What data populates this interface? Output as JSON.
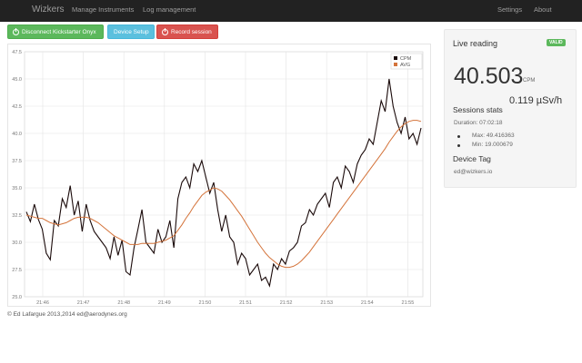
{
  "navbar": {
    "brand": "Wizkers",
    "links": [
      "Manage Instruments",
      "Log management"
    ],
    "right_links": [
      "Settings",
      "About"
    ]
  },
  "toolbar": {
    "disconnect_label": "Disconnect Kickstarter Onyx",
    "device_setup_label": "Device Setup",
    "record_label": "Record session"
  },
  "chart_data": {
    "type": "line",
    "x_ticks": [
      "21:46",
      "21:47",
      "21:48",
      "21:49",
      "21:50",
      "21:51",
      "21:52",
      "21:53",
      "21:54",
      "21:55"
    ],
    "y_ticks": [
      "25.0",
      "27.5",
      "30.0",
      "32.5",
      "35.0",
      "37.5",
      "40.0",
      "42.5",
      "45.0",
      "47.5"
    ],
    "ylim": [
      25,
      47.5
    ],
    "grid": true,
    "legend_position": "top-right",
    "series": [
      {
        "name": "CPM",
        "color": "#1a0a0a",
        "values": [
          32.8,
          31.9,
          33.5,
          32.1,
          31.2,
          29.0,
          28.4,
          32.0,
          31.5,
          34.0,
          33.2,
          35.2,
          32.5,
          33.8,
          31.0,
          33.5,
          32.0,
          31.0,
          30.5,
          30.0,
          29.5,
          28.5,
          30.5,
          28.8,
          30.2,
          27.3,
          27.0,
          29.5,
          31.2,
          33.0,
          30.0,
          29.5,
          29.0,
          31.2,
          30.0,
          30.5,
          32.0,
          29.5,
          34.0,
          35.5,
          36.0,
          35.0,
          37.2,
          36.5,
          37.5,
          36.0,
          34.5,
          35.5,
          33.0,
          31.0,
          32.5,
          30.5,
          30.0,
          28.0,
          29.0,
          28.5,
          27.0,
          27.5,
          28.0,
          26.5,
          26.8,
          26.0,
          28.0,
          27.5,
          28.5,
          28.0,
          29.2,
          29.5,
          30.0,
          31.5,
          31.8,
          33.0,
          32.5,
          33.5,
          34.0,
          34.5,
          33.2,
          35.5,
          36.0,
          35.0,
          37.0,
          36.5,
          35.5,
          37.2,
          38.0,
          38.5,
          39.5,
          39.0,
          41.0,
          43.0,
          42.0,
          45.0,
          42.5,
          41.0,
          40.0,
          41.5,
          39.5,
          40.0,
          39.0,
          40.5
        ]
      },
      {
        "name": "AVG",
        "color": "#d4733a",
        "values": [
          32.5,
          32.4,
          32.3,
          32.2,
          32.2,
          32.0,
          31.8,
          31.7,
          31.6,
          31.7,
          31.8,
          32.0,
          32.2,
          32.3,
          32.3,
          32.3,
          32.2,
          32.0,
          31.8,
          31.5,
          31.2,
          30.9,
          30.6,
          30.4,
          30.2,
          30.0,
          29.8,
          29.8,
          29.8,
          29.9,
          29.9,
          29.9,
          29.9,
          30.0,
          30.1,
          30.2,
          30.4,
          30.6,
          31.1,
          31.6,
          32.2,
          32.7,
          33.3,
          33.8,
          34.3,
          34.6,
          34.8,
          35.0,
          34.9,
          34.7,
          34.3,
          33.9,
          33.4,
          32.9,
          32.4,
          31.8,
          31.2,
          30.6,
          30.0,
          29.5,
          29.0,
          28.6,
          28.3,
          28.0,
          27.8,
          27.7,
          27.7,
          27.8,
          28.0,
          28.3,
          28.7,
          29.1,
          29.6,
          30.1,
          30.6,
          31.1,
          31.6,
          32.1,
          32.6,
          33.1,
          33.6,
          34.1,
          34.6,
          35.1,
          35.6,
          36.1,
          36.6,
          37.1,
          37.6,
          38.1,
          38.6,
          39.2,
          39.7,
          40.2,
          40.6,
          40.9,
          41.1,
          41.2,
          41.2,
          41.1
        ]
      }
    ]
  },
  "footer": "© Ed Lafargue 2013,2014 ed@aerodynes.org",
  "live": {
    "title": "Live reading",
    "badge": "VALID",
    "badge_color": "#5cb85c",
    "cpm_value": "40.503",
    "cpm_unit": "CPM",
    "usv": "0.119 µSv/h",
    "stats_title": "Sessions stats",
    "duration": "Duration: 07:02:18",
    "max": "Max: 49.416363",
    "min": "Min: 19.000679",
    "device_tag_title": "Device Tag",
    "device_tag": "ed@wizkers.io"
  }
}
